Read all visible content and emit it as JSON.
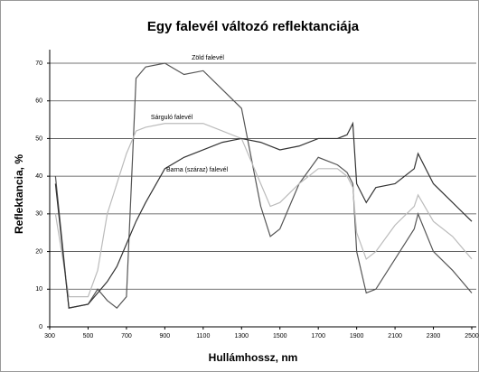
{
  "chart_data": {
    "type": "line",
    "title": "Egy falevél változó reflektanciája",
    "xlabel": "Hullámhossz, nm",
    "ylabel": "Reflektancia, %",
    "x": [
      330,
      400,
      500,
      550,
      600,
      650,
      700,
      750,
      800,
      900,
      1000,
      1100,
      1200,
      1300,
      1400,
      1450,
      1500,
      1600,
      1700,
      1800,
      1850,
      1880,
      1900,
      1950,
      2000,
      2100,
      2200,
      2220,
      2300,
      2400,
      2500
    ],
    "series": [
      {
        "name": "Zöld falevél",
        "color": "#555555",
        "values": [
          40,
          5,
          6,
          10,
          7,
          5,
          8,
          66,
          69,
          70,
          67,
          68,
          63,
          58,
          32,
          24,
          26,
          38,
          45,
          43,
          41,
          38,
          20,
          9,
          10,
          18,
          26,
          30,
          20,
          15,
          9
        ]
      },
      {
        "name": "Sárguló falevél",
        "color": "#bbbbbb",
        "values": [
          30,
          8,
          8,
          15,
          30,
          38,
          46,
          52,
          53,
          54,
          54,
          54,
          52,
          50,
          38,
          32,
          33,
          38,
          42,
          42,
          40,
          37,
          25,
          18,
          20,
          27,
          32,
          35,
          28,
          24,
          18
        ]
      },
      {
        "name": "Barna (száraz) falevél",
        "color": "#333333",
        "values": [
          38,
          5,
          6,
          9,
          12,
          16,
          22,
          28,
          33,
          42,
          45,
          47,
          49,
          50,
          49,
          48,
          47,
          48,
          50,
          50,
          51,
          54,
          38,
          33,
          37,
          38,
          42,
          46,
          38,
          33,
          28
        ]
      }
    ],
    "xlim": [
      300,
      2500
    ],
    "xticks": [
      300,
      500,
      700,
      900,
      1100,
      1300,
      1500,
      1700,
      1900,
      2100,
      2300,
      2500
    ],
    "ylim": [
      0,
      70
    ],
    "yticks": [
      0,
      10,
      20,
      30,
      40,
      50,
      60,
      70
    ],
    "grid": true
  }
}
